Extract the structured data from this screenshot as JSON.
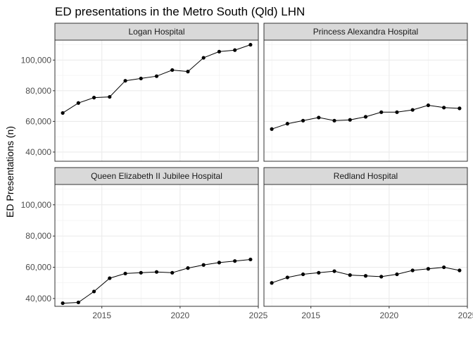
{
  "chart_data": {
    "type": "line",
    "title": "ED presentations in the Metro South (Qld) LHN",
    "xlabel": "",
    "ylabel": "ED Presentations (n)",
    "xlim": [
      2012,
      2025
    ],
    "ylim": [
      35000,
      113000
    ],
    "x_ticks": [
      2015,
      2020,
      2025
    ],
    "y_ticks": [
      40000,
      60000,
      80000,
      100000
    ],
    "x_tick_labels": [
      "2015",
      "2020",
      "2025"
    ],
    "y_tick_labels": [
      "40,000",
      "60,000",
      "80,000",
      "100,000"
    ],
    "grid": true,
    "layout": "facet 2x2, free y scales per row",
    "series_color": "#000000",
    "panels": [
      {
        "name": "Logan Hospital",
        "x": [
          2012.5,
          2013.5,
          2014.5,
          2015.5,
          2016.5,
          2017.5,
          2018.5,
          2019.5,
          2020.5,
          2021.5,
          2022.5,
          2023.5,
          2024.5
        ],
        "y": [
          65500,
          72000,
          75500,
          76000,
          86500,
          88000,
          89500,
          93500,
          92500,
          101500,
          105500,
          106500,
          110000
        ]
      },
      {
        "name": "Princess Alexandra Hospital",
        "x": [
          2012.5,
          2013.5,
          2014.5,
          2015.5,
          2016.5,
          2017.5,
          2018.5,
          2019.5,
          2020.5,
          2021.5,
          2022.5,
          2023.5,
          2024.5
        ],
        "y": [
          55000,
          58500,
          60500,
          62500,
          60500,
          61000,
          63000,
          66000,
          66000,
          67500,
          70500,
          69000,
          68500
        ]
      },
      {
        "name": "Queen Elizabeth II Jubilee Hospital",
        "x": [
          2012.5,
          2013.5,
          2014.5,
          2015.5,
          2016.5,
          2017.5,
          2018.5,
          2019.5,
          2020.5,
          2021.5,
          2022.5,
          2023.5,
          2024.5
        ],
        "y": [
          37000,
          37500,
          44500,
          53000,
          56000,
          56500,
          57000,
          56500,
          59500,
          61500,
          63000,
          64000,
          65000
        ]
      },
      {
        "name": "Redland Hospital",
        "x": [
          2012.5,
          2013.5,
          2014.5,
          2015.5,
          2016.5,
          2017.5,
          2018.5,
          2019.5,
          2020.5,
          2021.5,
          2022.5,
          2023.5,
          2024.5
        ],
        "y": [
          50000,
          53500,
          55500,
          56500,
          57500,
          55000,
          54500,
          54000,
          55500,
          58000,
          59000,
          60000,
          58000
        ]
      }
    ]
  }
}
